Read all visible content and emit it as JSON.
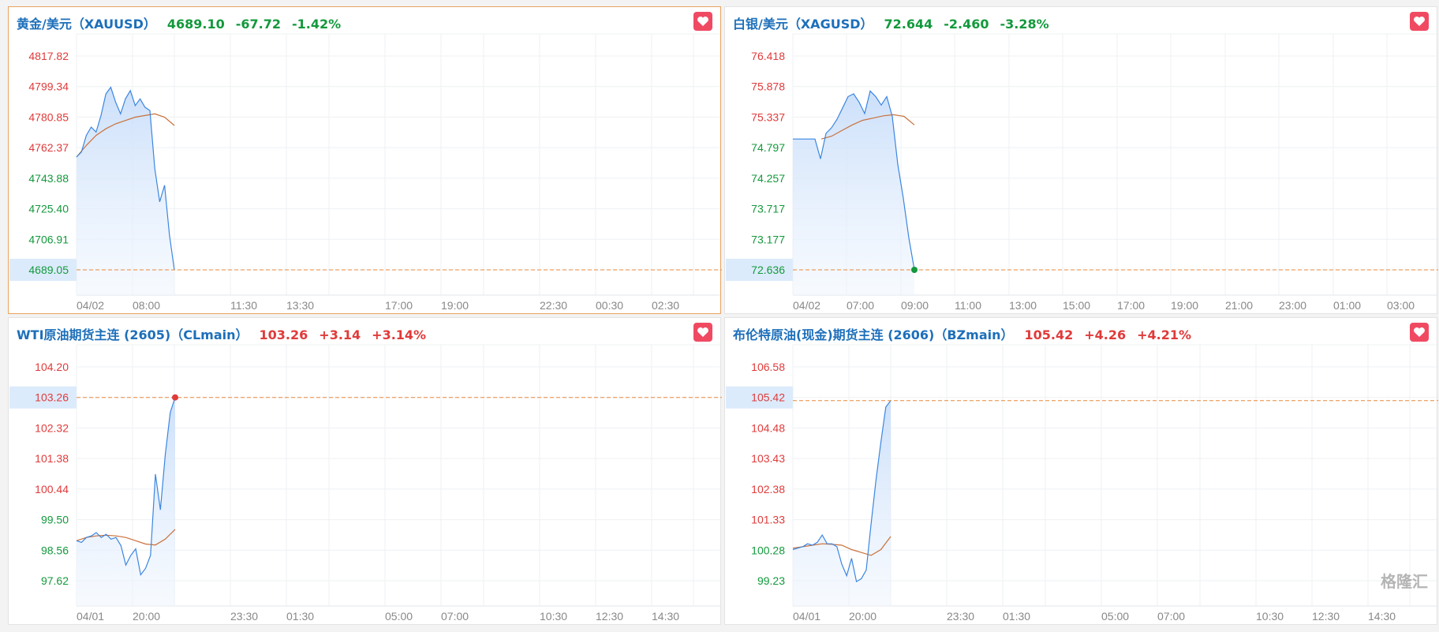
{
  "colors": {
    "up": "#e03a3a",
    "down": "#13993c",
    "line": "#3b86e0",
    "avg": "#c9703a",
    "dash": "#e8883a",
    "highlight": "#dcebfb",
    "title": "#1d6fba",
    "favorite": "#f04a62"
  },
  "watermark": "格隆汇",
  "panels": [
    {
      "name": "黄金/美元（XAUUSD）",
      "price": "4689.10",
      "change": "-67.72",
      "pct": "-1.42%",
      "direction": "down",
      "selected": true,
      "favorite_icon": "heart-icon",
      "y_labels": [
        {
          "v": "4817.82",
          "c": "up"
        },
        {
          "v": "4799.34",
          "c": "up"
        },
        {
          "v": "4780.85",
          "c": "up"
        },
        {
          "v": "4762.37",
          "c": "up"
        },
        {
          "v": "4743.88",
          "c": "down"
        },
        {
          "v": "4725.40",
          "c": "down"
        },
        {
          "v": "4706.91",
          "c": "down"
        },
        {
          "v": "4689.05",
          "c": "down",
          "current": true
        }
      ],
      "x_labels": [
        "04/02",
        "08:00",
        "11:30",
        "13:30",
        "17:00",
        "19:00",
        "22:30",
        "00:30",
        "02:30"
      ],
      "current": 4689.05,
      "end_dot": null,
      "series": [
        4757,
        4760,
        4770,
        4775,
        4772,
        4782,
        4795,
        4799,
        4790,
        4783,
        4792,
        4797,
        4788,
        4792,
        4787,
        4785,
        4750,
        4730,
        4740,
        4710,
        4689
      ],
      "avg": [
        4757,
        4764,
        4770,
        4774,
        4777,
        4779,
        4781,
        4782,
        4783,
        4781,
        4776
      ]
    },
    {
      "name": "白银/美元（XAGUSD）",
      "price": "72.644",
      "change": "-2.460",
      "pct": "-3.28%",
      "direction": "down",
      "selected": false,
      "favorite_icon": "heart-icon",
      "y_labels": [
        {
          "v": "76.418",
          "c": "up"
        },
        {
          "v": "75.878",
          "c": "up"
        },
        {
          "v": "75.337",
          "c": "up"
        },
        {
          "v": "74.797",
          "c": "down"
        },
        {
          "v": "74.257",
          "c": "down"
        },
        {
          "v": "73.717",
          "c": "down"
        },
        {
          "v": "73.177",
          "c": "down"
        },
        {
          "v": "72.636",
          "c": "down",
          "current": true
        }
      ],
      "x_labels": [
        "04/02",
        "07:00",
        "09:00",
        "11:00",
        "13:00",
        "15:00",
        "17:00",
        "19:00",
        "21:00",
        "23:00",
        "01:00",
        "03:00"
      ],
      "current": 72.636,
      "end_dot": "down",
      "series": [
        74.95,
        74.95,
        74.95,
        74.95,
        74.95,
        74.6,
        75.05,
        75.15,
        75.3,
        75.5,
        75.7,
        75.75,
        75.6,
        75.4,
        75.8,
        75.7,
        75.55,
        75.7,
        75.35,
        74.5,
        73.9,
        73.2,
        72.64
      ],
      "avg": [
        74.95,
        75.0,
        75.1,
        75.2,
        75.28,
        75.32,
        75.36,
        75.38,
        75.35,
        75.2
      ]
    },
    {
      "name": "WTI原油期货主连 (2605)（CLmain）",
      "price": "103.26",
      "change": "+3.14",
      "pct": "+3.14%",
      "direction": "up",
      "selected": false,
      "favorite_icon": "heart-icon",
      "y_labels": [
        {
          "v": "104.20",
          "c": "up"
        },
        {
          "v": "103.26",
          "c": "up",
          "current": true
        },
        {
          "v": "102.32",
          "c": "up"
        },
        {
          "v": "101.38",
          "c": "up"
        },
        {
          "v": "100.44",
          "c": "up"
        },
        {
          "v": "99.50",
          "c": "down"
        },
        {
          "v": "98.56",
          "c": "down"
        },
        {
          "v": "97.62",
          "c": "down"
        }
      ],
      "x_labels": [
        "04/01",
        "20:00",
        "23:30",
        "01:30",
        "05:00",
        "07:00",
        "10:30",
        "12:30",
        "14:30"
      ],
      "current": 103.26,
      "end_dot": "up",
      "series": [
        98.85,
        98.8,
        98.95,
        99.0,
        99.1,
        98.95,
        99.05,
        98.9,
        98.95,
        98.7,
        98.1,
        98.4,
        98.6,
        97.8,
        98.0,
        98.4,
        100.9,
        99.8,
        101.5,
        102.8,
        103.26
      ],
      "avg": [
        98.85,
        98.95,
        99.0,
        99.02,
        99.0,
        98.95,
        98.85,
        98.75,
        98.72,
        98.9,
        99.2
      ]
    },
    {
      "name": "布伦特原油(现金)期货主连 (2606)（BZmain）",
      "price": "105.42",
      "change": "+4.26",
      "pct": "+4.21%",
      "direction": "up",
      "selected": false,
      "favorite_icon": "heart-icon",
      "y_labels": [
        {
          "v": "106.58",
          "c": "up"
        },
        {
          "v": "105.42",
          "c": "up",
          "current": true
        },
        {
          "v": "104.48",
          "c": "up"
        },
        {
          "v": "103.43",
          "c": "up"
        },
        {
          "v": "102.38",
          "c": "up"
        },
        {
          "v": "101.33",
          "c": "up"
        },
        {
          "v": "100.28",
          "c": "down"
        },
        {
          "v": "99.23",
          "c": "down"
        }
      ],
      "x_labels": [
        "04/01",
        "20:00",
        "23:30",
        "01:30",
        "05:00",
        "07:00",
        "10:30",
        "12:30",
        "14:30"
      ],
      "current": 105.42,
      "end_dot": null,
      "series": [
        100.3,
        100.35,
        100.4,
        100.5,
        100.45,
        100.55,
        100.8,
        100.5,
        100.5,
        100.4,
        99.8,
        99.4,
        100.0,
        99.2,
        99.3,
        99.6,
        101.2,
        102.7,
        104.0,
        105.2,
        105.42
      ],
      "avg": [
        100.35,
        100.4,
        100.45,
        100.5,
        100.48,
        100.45,
        100.3,
        100.2,
        100.1,
        100.3,
        100.75
      ]
    }
  ]
}
